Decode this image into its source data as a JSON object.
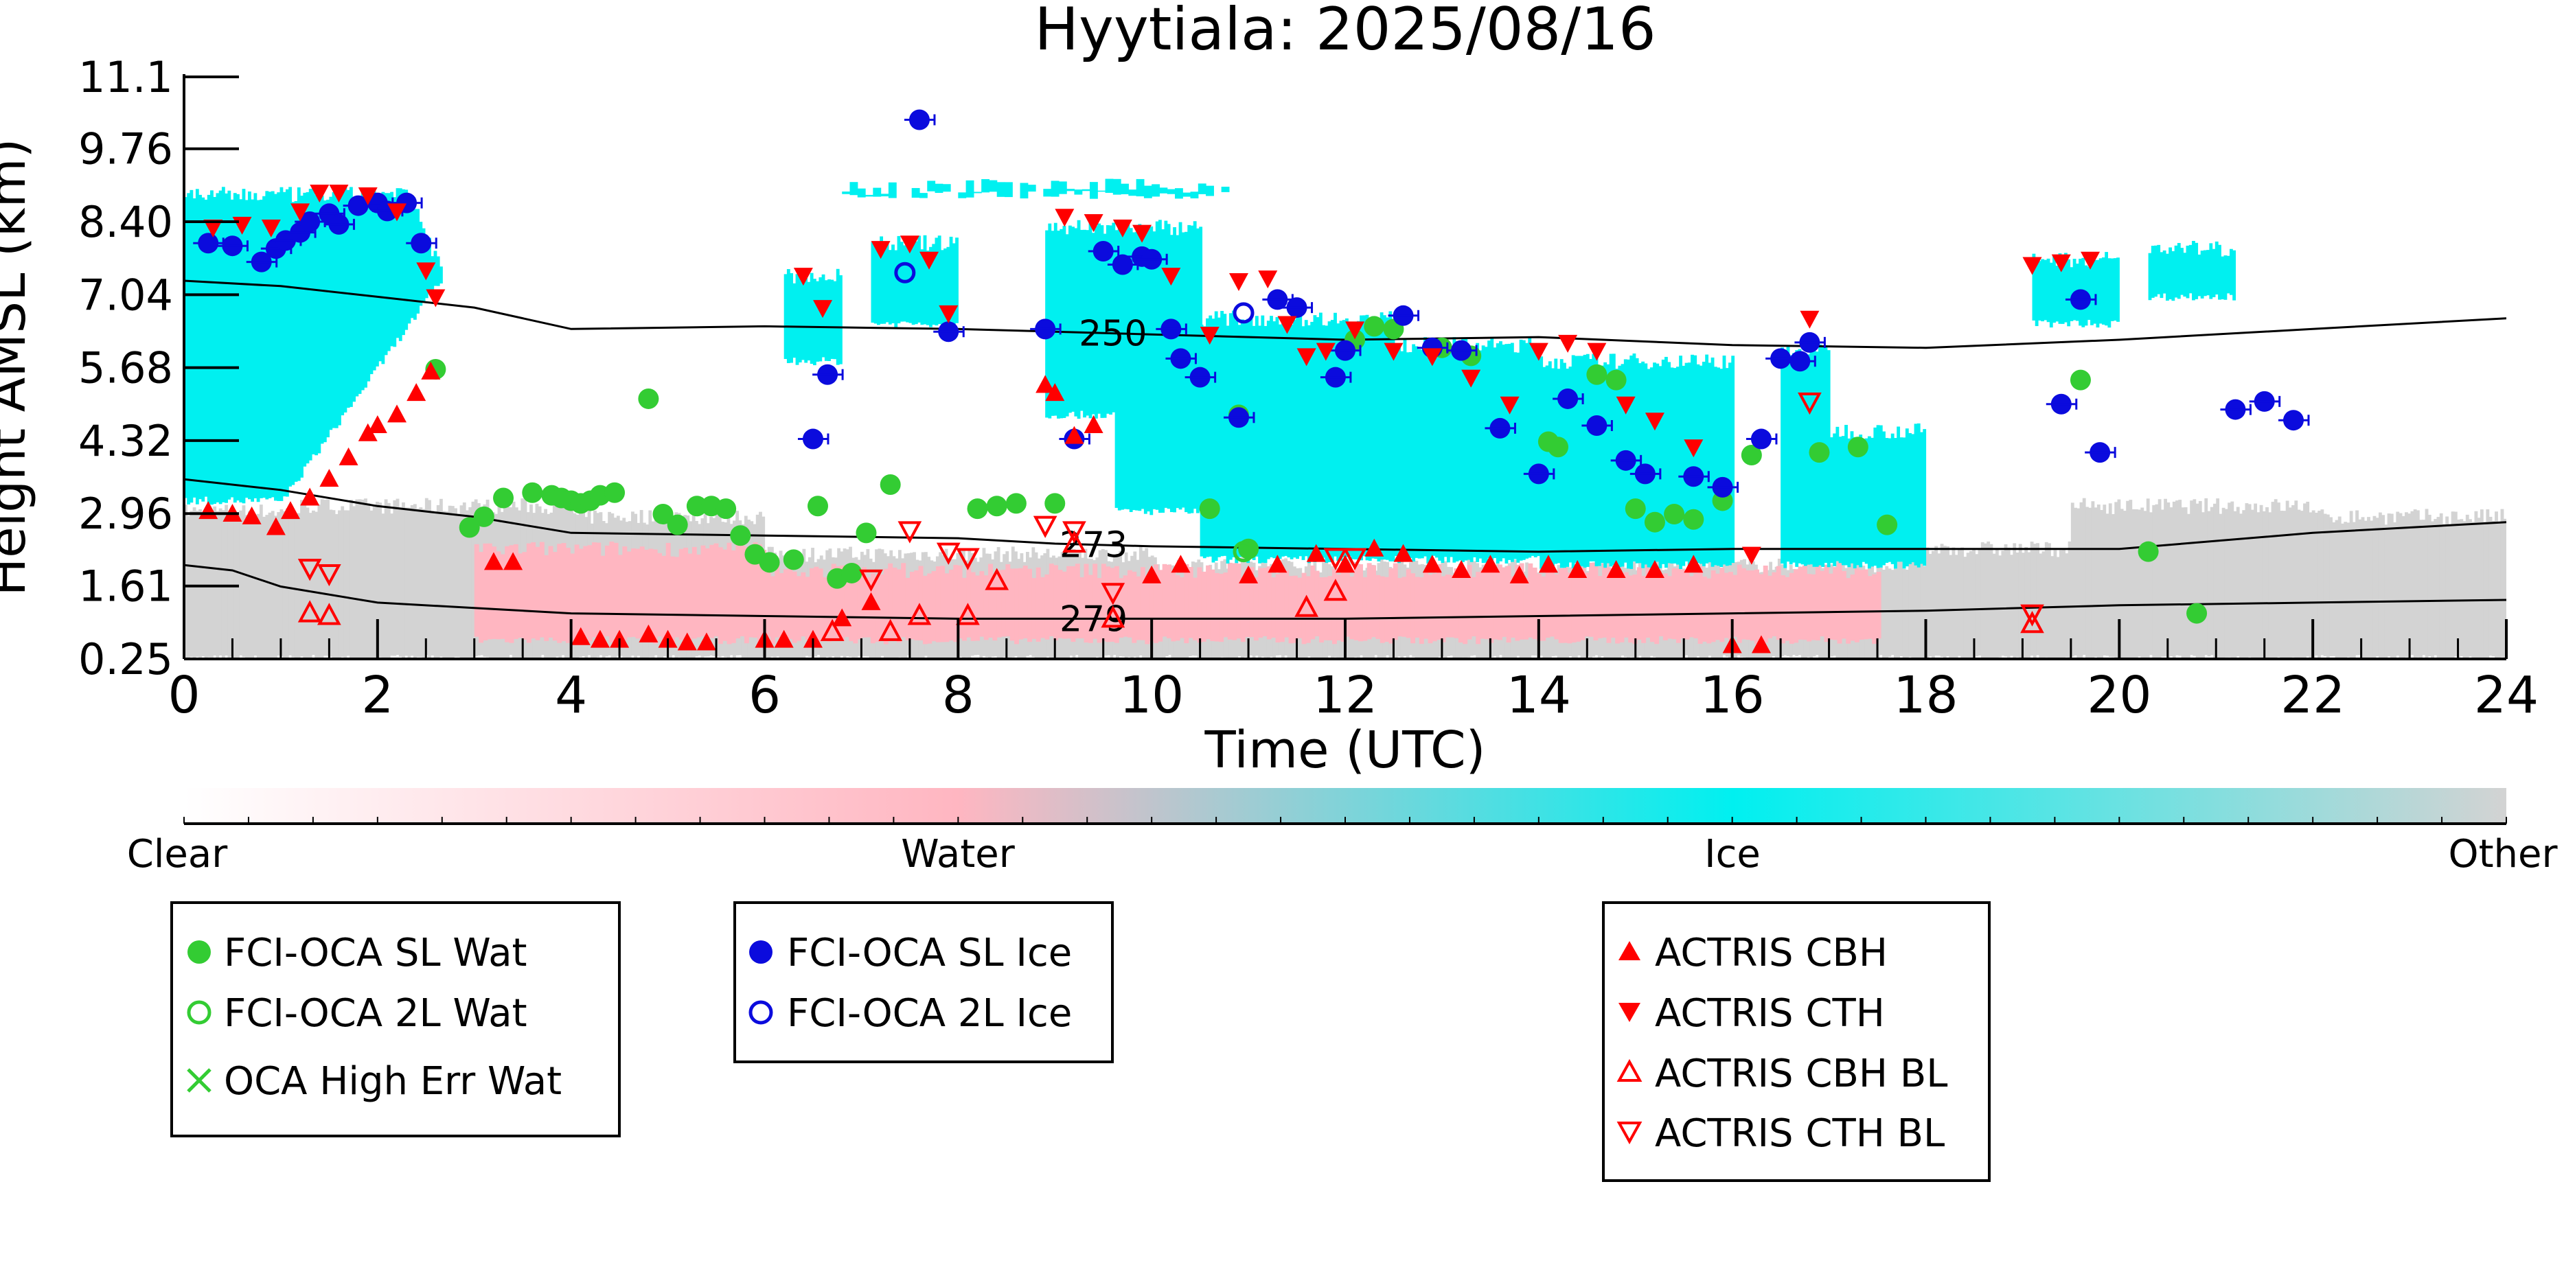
{
  "chart_data": {
    "type": "scatter",
    "title": "Hyytiala: 2025/08/16",
    "xlabel": "Time (UTC)",
    "ylabel": "Height AMSL (km)",
    "xlim": [
      0,
      24
    ],
    "ylim": [
      0.25,
      11.1
    ],
    "x_ticks": [
      "0",
      "2",
      "4",
      "6",
      "8",
      "10",
      "12",
      "14",
      "16",
      "18",
      "20",
      "22",
      "24"
    ],
    "y_ticks": [
      "0.25",
      "1.61",
      "2.96",
      "4.32",
      "5.68",
      "7.04",
      "8.40",
      "9.76",
      "11.1"
    ],
    "colorbar": {
      "labels": [
        "Clear",
        "Water",
        "Ice",
        "Other"
      ],
      "colors": [
        "#ffffff",
        "#ffb6c1",
        "#00f0f0",
        "#d3d3d3"
      ]
    },
    "isotherms": [
      {
        "label": "250",
        "label_x": 9.6,
        "x": [
          0,
          1,
          2,
          3,
          4,
          6,
          8,
          9,
          10,
          12,
          14,
          16,
          18,
          20,
          22,
          24
        ],
        "y": [
          7.3,
          7.2,
          7.0,
          6.8,
          6.4,
          6.45,
          6.4,
          6.35,
          6.3,
          6.2,
          6.25,
          6.1,
          6.05,
          6.2,
          6.4,
          6.6
        ]
      },
      {
        "label": "273",
        "label_x": 9.4,
        "x": [
          0,
          1,
          2,
          3,
          4,
          6,
          8,
          9,
          10,
          12,
          14,
          16,
          18,
          20,
          22,
          24
        ],
        "y": [
          3.6,
          3.4,
          3.1,
          2.9,
          2.6,
          2.55,
          2.5,
          2.4,
          2.35,
          2.3,
          2.25,
          2.3,
          2.3,
          2.3,
          2.6,
          2.8
        ]
      },
      {
        "label": "279",
        "label_x": 9.4,
        "x": [
          0,
          0.5,
          1,
          2,
          3,
          4,
          6,
          8,
          9,
          10,
          12,
          14,
          16,
          18,
          20,
          22,
          24
        ],
        "y": [
          2.0,
          1.9,
          1.6,
          1.3,
          1.2,
          1.1,
          1.05,
          1.0,
          1.0,
          1.0,
          1.0,
          1.05,
          1.1,
          1.15,
          1.25,
          1.3,
          1.35
        ]
      }
    ],
    "series": [
      {
        "name": "FCI-OCA SL Wat",
        "color": "#33cc33",
        "marker": "circle",
        "filled": true,
        "x": [
          2.6,
          2.95,
          3.1,
          3.3,
          3.6,
          3.8,
          3.9,
          4.0,
          4.1,
          4.2,
          4.3,
          4.45,
          4.8,
          4.95,
          5.1,
          5.3,
          5.45,
          5.6,
          5.75,
          5.9,
          6.05,
          6.3,
          6.55,
          6.75,
          6.9,
          7.05,
          7.3,
          8.2,
          8.4,
          8.6,
          9.0,
          10.6,
          10.9,
          11.0,
          12.1,
          12.3,
          12.5,
          13.0,
          13.3,
          14.1,
          14.2,
          14.6,
          14.8,
          15.0,
          15.2,
          15.4,
          15.6,
          15.9,
          16.2,
          16.9,
          17.3,
          17.6,
          19.6,
          20.3,
          20.8
        ],
        "y": [
          5.65,
          2.7,
          2.9,
          3.25,
          3.35,
          3.3,
          3.25,
          3.2,
          3.15,
          3.2,
          3.3,
          3.35,
          5.1,
          2.95,
          2.75,
          3.1,
          3.1,
          3.05,
          2.55,
          2.2,
          2.05,
          2.1,
          3.1,
          1.75,
          1.85,
          2.6,
          3.5,
          3.05,
          3.1,
          3.15,
          3.15,
          3.05,
          4.8,
          2.3,
          6.2,
          6.45,
          6.4,
          6.05,
          5.9,
          4.3,
          4.2,
          5.55,
          5.45,
          3.05,
          2.8,
          2.95,
          2.85,
          3.2,
          4.05,
          4.1,
          4.2,
          2.75,
          5.45,
          2.25,
          1.1
        ]
      },
      {
        "name": "FCI-OCA 2L Wat",
        "color": "#33cc33",
        "marker": "circle",
        "filled": false,
        "x": [
          10.95
        ],
        "y": [
          2.25
        ]
      },
      {
        "name": "OCA High Err Wat",
        "color": "#33cc33",
        "marker": "x",
        "filled": true,
        "x": [],
        "y": []
      },
      {
        "name": "FCI-OCA SL Ice",
        "color": "#0b0bdd",
        "marker": "circle",
        "filled": true,
        "x": [
          0.25,
          0.5,
          0.8,
          0.95,
          1.05,
          1.2,
          1.3,
          1.5,
          1.6,
          1.8,
          2.0,
          2.1,
          2.3,
          2.45,
          6.5,
          6.65,
          7.6,
          7.9,
          8.9,
          9.2,
          9.5,
          9.7,
          9.9,
          10.0,
          10.2,
          10.3,
          10.5,
          10.9,
          11.3,
          11.5,
          11.9,
          12.0,
          12.6,
          12.9,
          13.2,
          13.6,
          14.0,
          14.3,
          14.6,
          14.9,
          15.1,
          15.6,
          15.9,
          16.3,
          16.5,
          16.7,
          16.8,
          19.4,
          19.6,
          19.8,
          21.2,
          21.5,
          21.8
        ],
        "y": [
          8.0,
          7.95,
          7.65,
          7.9,
          8.05,
          8.2,
          8.4,
          8.55,
          8.35,
          8.7,
          8.75,
          8.6,
          8.75,
          8.0,
          4.35,
          5.55,
          10.3,
          6.35,
          6.4,
          4.35,
          7.85,
          7.6,
          7.75,
          7.7,
          6.4,
          5.85,
          5.5,
          4.75,
          6.95,
          6.8,
          5.5,
          6.0,
          6.65,
          6.05,
          6.0,
          4.55,
          3.7,
          5.1,
          4.6,
          3.95,
          3.7,
          3.65,
          3.45,
          4.35,
          5.85,
          5.8,
          6.15,
          5.0,
          6.95,
          4.1,
          4.9,
          5.05,
          4.7
        ]
      },
      {
        "name": "FCI-OCA 2L Ice",
        "color": "#0b0bdd",
        "marker": "circle",
        "filled": false,
        "x": [
          7.45,
          10.95
        ],
        "y": [
          7.45,
          6.7
        ]
      },
      {
        "name": "ACTRIS CBH",
        "color": "#ff0000",
        "marker": "triangle-up",
        "filled": true,
        "x": [
          0.25,
          0.5,
          0.7,
          0.95,
          1.1,
          1.3,
          1.5,
          1.7,
          1.9,
          2.0,
          2.2,
          2.4,
          2.55,
          3.2,
          3.4,
          4.1,
          4.3,
          4.5,
          4.8,
          5.0,
          5.2,
          5.4,
          6.0,
          6.2,
          6.5,
          6.8,
          7.1,
          8.9,
          9.0,
          9.2,
          9.4,
          10.0,
          10.3,
          11.0,
          11.3,
          11.7,
          12.0,
          12.3,
          12.6,
          12.9,
          13.2,
          13.5,
          13.8,
          14.1,
          14.4,
          14.8,
          15.2,
          15.6,
          16.0,
          16.3
        ],
        "y": [
          3.0,
          2.95,
          2.9,
          2.7,
          3.0,
          3.25,
          3.6,
          4.0,
          4.45,
          4.6,
          4.8,
          5.2,
          5.6,
          2.05,
          2.05,
          0.65,
          0.6,
          0.6,
          0.7,
          0.6,
          0.55,
          0.55,
          0.6,
          0.6,
          0.6,
          1.0,
          1.3,
          5.35,
          5.2,
          4.4,
          4.6,
          1.8,
          2.0,
          1.8,
          2.0,
          2.2,
          2.0,
          2.3,
          2.2,
          2.0,
          1.9,
          2.0,
          1.8,
          2.0,
          1.9,
          1.9,
          1.9,
          2.0,
          0.5,
          0.5
        ]
      },
      {
        "name": "ACTRIS CTH",
        "color": "#ff0000",
        "marker": "triangle-down",
        "filled": true,
        "x": [
          0.3,
          0.6,
          0.9,
          1.2,
          1.4,
          1.6,
          1.9,
          2.2,
          2.5,
          2.6,
          6.4,
          6.6,
          7.2,
          7.5,
          7.7,
          7.9,
          9.1,
          9.4,
          9.7,
          9.9,
          10.2,
          10.6,
          10.9,
          11.2,
          11.4,
          11.6,
          11.8,
          12.1,
          12.5,
          12.9,
          13.3,
          13.7,
          14.0,
          14.3,
          14.6,
          14.9,
          15.2,
          15.6,
          16.2,
          16.8,
          19.1,
          19.4,
          19.7
        ],
        "y": [
          8.3,
          8.35,
          8.3,
          8.6,
          8.95,
          8.95,
          8.9,
          8.6,
          7.5,
          7.0,
          7.4,
          6.8,
          7.9,
          8.0,
          7.7,
          6.7,
          8.5,
          8.4,
          8.3,
          8.2,
          7.4,
          6.3,
          7.3,
          7.35,
          6.5,
          5.9,
          6.0,
          6.4,
          6.0,
          5.9,
          5.5,
          5.0,
          6.0,
          6.15,
          6.0,
          5.0,
          4.7,
          4.2,
          2.2,
          6.6,
          7.6,
          7.65,
          7.7
        ]
      },
      {
        "name": "ACTRIS CBH BL",
        "color": "#ff0000",
        "marker": "triangle-up",
        "filled": false,
        "x": [
          1.3,
          1.5,
          6.7,
          7.3,
          7.6,
          8.1,
          8.4,
          9.2,
          9.6,
          11.6,
          11.9,
          19.1
        ],
        "y": [
          1.1,
          1.05,
          0.75,
          0.75,
          1.05,
          1.05,
          1.7,
          2.4,
          1.0,
          1.2,
          1.5,
          0.9
        ]
      },
      {
        "name": "ACTRIS CTH BL",
        "color": "#ff0000",
        "marker": "triangle-down",
        "filled": false,
        "x": [
          1.3,
          1.5,
          7.1,
          7.5,
          7.9,
          8.1,
          8.9,
          9.2,
          9.6,
          11.9,
          12.1,
          16.8,
          19.1
        ],
        "y": [
          1.95,
          1.85,
          1.75,
          2.65,
          2.25,
          2.15,
          2.75,
          2.65,
          1.5,
          2.15,
          2.15,
          5.05,
          1.1
        ]
      }
    ]
  },
  "legend_boxes": [
    [
      "FCI-OCA SL Wat",
      "FCI-OCA 2L Wat",
      "OCA High Err Wat"
    ],
    [
      "FCI-OCA SL Ice",
      "FCI-OCA 2L Ice"
    ],
    [
      "ACTRIS CBH",
      "ACTRIS CTH",
      "ACTRIS CBH BL",
      "ACTRIS CTH BL"
    ]
  ]
}
